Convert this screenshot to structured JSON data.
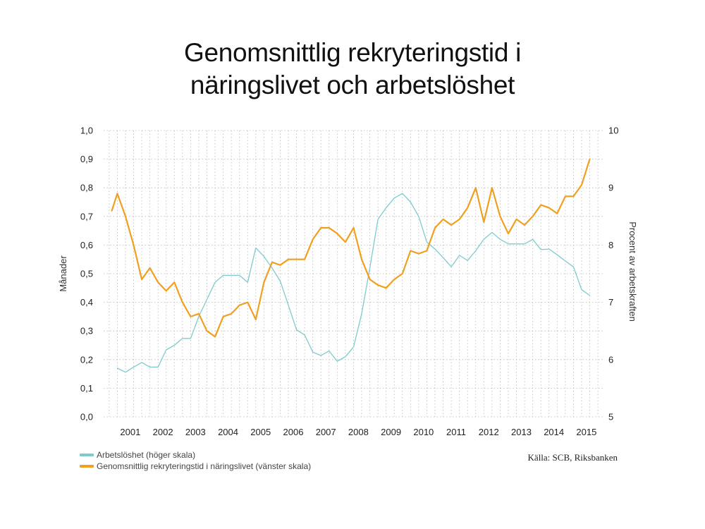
{
  "chart_data": {
    "type": "line",
    "title_lines": [
      "Genomsnittlig rekryteringstid i",
      "näringslivet och arbetslöshet"
    ],
    "ylabel_left": "Månader",
    "ylabel_right": "Procent av arbetskraften",
    "ylim_left": [
      0,
      1.0
    ],
    "ylim_right": [
      5,
      10
    ],
    "left_ticks": [
      "0,0",
      "0,1",
      "0,2",
      "0,3",
      "0,4",
      "0,5",
      "0,6",
      "0,7",
      "0,8",
      "0,9",
      "1,0"
    ],
    "right_ticks": [
      "5",
      "6",
      "7",
      "8",
      "9",
      "10"
    ],
    "x_years": [
      "2001",
      "2002",
      "2003",
      "2004",
      "2005",
      "2006",
      "2007",
      "2008",
      "2009",
      "2010",
      "2011",
      "2012",
      "2013",
      "2014",
      "2015"
    ],
    "grid": true,
    "series": [
      {
        "name": "Arbetslöshet (höger skala)",
        "axis": "right",
        "color": "#7ecbcf",
        "x": [
          2001.0,
          2001.25,
          2001.5,
          2001.75,
          2002.0,
          2002.25,
          2002.5,
          2002.75,
          2003.0,
          2003.25,
          2003.5,
          2003.75,
          2004.0,
          2004.25,
          2004.5,
          2004.75,
          2005.0,
          2005.25,
          2005.5,
          2005.75,
          2006.0,
          2006.25,
          2006.5,
          2006.75,
          2007.0,
          2007.25,
          2007.5,
          2007.75,
          2008.0,
          2008.25,
          2008.5,
          2008.75,
          2009.0,
          2009.25,
          2009.5,
          2009.75,
          2010.0,
          2010.25,
          2010.5,
          2010.75,
          2011.0,
          2011.25,
          2011.5,
          2011.75,
          2012.0,
          2012.25,
          2012.5,
          2012.75,
          2013.0,
          2013.25,
          2013.5,
          2013.75,
          2014.0,
          2014.25,
          2014.5,
          2014.75,
          2015.0,
          2015.25,
          2015.5
        ],
        "values": [
          5.85,
          5.78,
          5.87,
          5.95,
          5.87,
          5.87,
          6.17,
          6.25,
          6.37,
          6.37,
          6.75,
          7.05,
          7.35,
          7.47,
          7.47,
          7.47,
          7.35,
          7.95,
          7.8,
          7.6,
          7.37,
          6.95,
          6.52,
          6.43,
          6.13,
          6.07,
          6.15,
          5.97,
          6.05,
          6.22,
          6.8,
          7.6,
          8.45,
          8.65,
          8.82,
          8.9,
          8.75,
          8.5,
          8.05,
          7.93,
          7.78,
          7.62,
          7.82,
          7.73,
          7.9,
          8.1,
          8.22,
          8.1,
          8.02,
          8.02,
          8.02,
          8.1,
          7.92,
          7.93,
          7.83,
          7.72,
          7.62,
          7.22,
          7.12
        ]
      },
      {
        "name": "Genomsnittlig rekryteringstid i näringslivet (vänster skala)",
        "axis": "left",
        "color": "#f0a020",
        "x": [
          2000.83,
          2001.0,
          2001.25,
          2001.5,
          2001.75,
          2002.0,
          2002.25,
          2002.5,
          2002.75,
          2003.0,
          2003.25,
          2003.5,
          2003.75,
          2004.0,
          2004.25,
          2004.5,
          2004.75,
          2005.0,
          2005.25,
          2005.5,
          2005.75,
          2006.0,
          2006.25,
          2006.5,
          2006.75,
          2007.0,
          2007.25,
          2007.5,
          2007.75,
          2008.0,
          2008.25,
          2008.5,
          2008.75,
          2009.0,
          2009.25,
          2009.5,
          2009.75,
          2010.0,
          2010.25,
          2010.5,
          2010.75,
          2011.0,
          2011.25,
          2011.5,
          2011.75,
          2012.0,
          2012.25,
          2012.5,
          2012.75,
          2013.0,
          2013.25,
          2013.5,
          2013.75,
          2014.0,
          2014.25,
          2014.5,
          2014.75,
          2015.0,
          2015.25,
          2015.5
        ],
        "values": [
          0.72,
          0.78,
          0.7,
          0.6,
          0.48,
          0.52,
          0.47,
          0.44,
          0.47,
          0.4,
          0.35,
          0.36,
          0.3,
          0.28,
          0.35,
          0.36,
          0.39,
          0.4,
          0.34,
          0.47,
          0.54,
          0.53,
          0.55,
          0.55,
          0.55,
          0.62,
          0.66,
          0.66,
          0.64,
          0.61,
          0.66,
          0.55,
          0.48,
          0.46,
          0.45,
          0.48,
          0.5,
          0.58,
          0.57,
          0.58,
          0.66,
          0.69,
          0.67,
          0.69,
          0.73,
          0.8,
          0.68,
          0.8,
          0.7,
          0.64,
          0.69,
          0.67,
          0.7,
          0.74,
          0.73,
          0.71,
          0.77,
          0.77,
          0.81,
          0.9
        ]
      }
    ],
    "source": "Källa: SCB, Riksbanken"
  }
}
